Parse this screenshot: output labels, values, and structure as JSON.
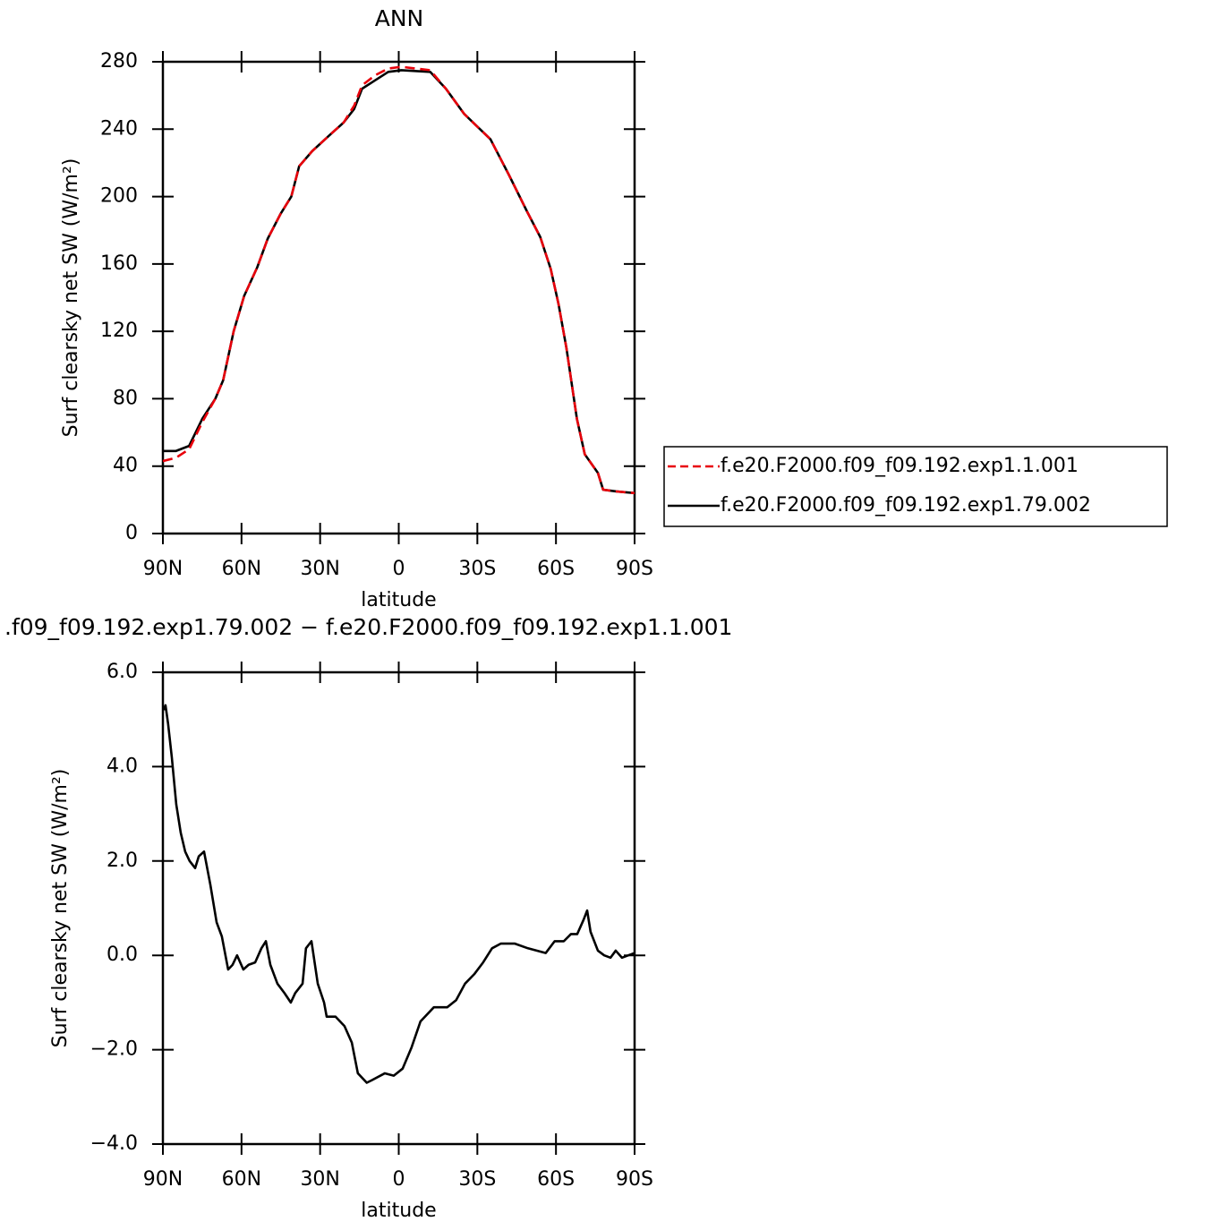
{
  "chart_data": [
    {
      "type": "line",
      "title": "ANN",
      "xlabel": "latitude",
      "ylabel": "Surf clearsky net SW (W/m²)",
      "x": [
        90,
        85,
        80,
        75,
        70,
        67,
        63,
        59,
        54,
        50,
        45,
        41,
        38,
        33,
        26,
        21,
        17,
        14,
        9,
        4,
        -1,
        -12,
        -18,
        -25,
        -35,
        -42,
        -49,
        -54,
        -58,
        -61,
        -64,
        -68,
        -71,
        -76,
        -78,
        -83,
        -90
      ],
      "series": [
        {
          "name": "f.e20.F2000.f09_f09.192.exp1.1.001",
          "color": "#e8000b",
          "dashed": true,
          "values": [
            43,
            45,
            50,
            66,
            80,
            91,
            120,
            141,
            158,
            175,
            190,
            200,
            218,
            227,
            237,
            244,
            254,
            266,
            272,
            276,
            277,
            275,
            264,
            249,
            234,
            213,
            191,
            176,
            157,
            136,
            110,
            68,
            47,
            36,
            26,
            25,
            24
          ]
        },
        {
          "name": "f.e20.F2000.f09_f09.192.exp1.79.002",
          "color": "#000000",
          "dashed": false,
          "values": [
            49,
            49,
            52,
            68,
            80,
            91,
            120,
            141,
            158,
            175,
            190,
            200,
            218,
            227,
            237,
            244,
            252,
            264,
            269,
            274,
            275,
            274,
            264,
            249,
            234,
            213,
            191,
            176,
            157,
            136,
            110,
            68,
            47,
            36,
            26,
            25,
            24
          ]
        }
      ],
      "xlim": [
        90,
        -90
      ],
      "xticks": [
        {
          "value": 90,
          "label": "90N"
        },
        {
          "value": 60,
          "label": "60N"
        },
        {
          "value": 30,
          "label": "30N"
        },
        0,
        {
          "value": -30,
          "label": "30S"
        },
        {
          "value": -60,
          "label": "60S"
        },
        {
          "value": -90,
          "label": "90S"
        }
      ],
      "ylim": [
        0,
        280
      ],
      "yticks": [
        0,
        40,
        80,
        120,
        160,
        200,
        240,
        280
      ],
      "legend": "right"
    },
    {
      "type": "line",
      "title": ".f09_f09.192.exp1.79.002 − f.e20.F2000.f09_f09.192.exp1.1.001",
      "xlabel": "latitude",
      "ylabel": "Surf clearsky net SW (W/m²)",
      "x": [
        89.7,
        89,
        88,
        86.6,
        84.9,
        83.2,
        81.5,
        79.8,
        77.7,
        76.3,
        74.3,
        71.9,
        69.5,
        67.5,
        65.1,
        63.4,
        61.7,
        59.3,
        57.3,
        54.8,
        52.4,
        50.7,
        49,
        46.3,
        43.6,
        41.2,
        39.5,
        36.7,
        35.4,
        33.3,
        30.9,
        28.5,
        27.5,
        24.1,
        20.7,
        17.9,
        15.6,
        12.2,
        10.4,
        5.3,
        1.9,
        -1.5,
        -4.9,
        -8.3,
        -13.4,
        -18.5,
        -21.9,
        -25.3,
        -28.8,
        -32.2,
        -35.6,
        -39,
        -44.2,
        -49.3,
        -56.1,
        -59.5,
        -63,
        -65.7,
        -68.1,
        -70.5,
        -71.9,
        -73.2,
        -76,
        -78.4,
        -80.8,
        -82.8,
        -85.2,
        -90
      ],
      "values": [
        5.2,
        5.3,
        4.9,
        4.2,
        3.2,
        2.6,
        2.2,
        2.0,
        1.85,
        2.1,
        2.2,
        1.5,
        0.7,
        0.4,
        -0.3,
        -0.2,
        0.0,
        -0.3,
        -0.2,
        -0.15,
        0.15,
        0.3,
        -0.2,
        -0.6,
        -0.8,
        -1.0,
        -0.8,
        -0.6,
        0.15,
        0.3,
        -0.6,
        -1.0,
        -1.3,
        -1.3,
        -1.5,
        -1.85,
        -2.5,
        -2.7,
        -2.65,
        -2.5,
        -2.55,
        -2.4,
        -1.95,
        -1.4,
        -1.1,
        -1.1,
        -0.95,
        -0.6,
        -0.4,
        -0.15,
        0.15,
        0.25,
        0.25,
        0.15,
        0.05,
        0.3,
        0.3,
        0.45,
        0.45,
        0.75,
        0.95,
        0.5,
        0.1,
        0.0,
        -0.05,
        0.1,
        -0.05,
        0.05
      ],
      "color": "#000000",
      "xlim": [
        90,
        -90
      ],
      "xticks": [
        {
          "value": 90,
          "label": "90N"
        },
        {
          "value": 60,
          "label": "60N"
        },
        {
          "value": 30,
          "label": "30N"
        },
        0,
        {
          "value": -30,
          "label": "30S"
        },
        {
          "value": -60,
          "label": "60S"
        },
        {
          "value": -90,
          "label": "90S"
        }
      ],
      "ylim": [
        -4,
        6
      ],
      "yticks": [
        {
          "value": -4,
          "label": "−4.0"
        },
        {
          "value": -2,
          "label": "−2.0"
        },
        {
          "value": 0,
          "label": "0.0"
        },
        {
          "value": 2,
          "label": "2.0"
        },
        {
          "value": 4,
          "label": "4.0"
        },
        {
          "value": 6,
          "label": "6.0"
        }
      ]
    }
  ]
}
